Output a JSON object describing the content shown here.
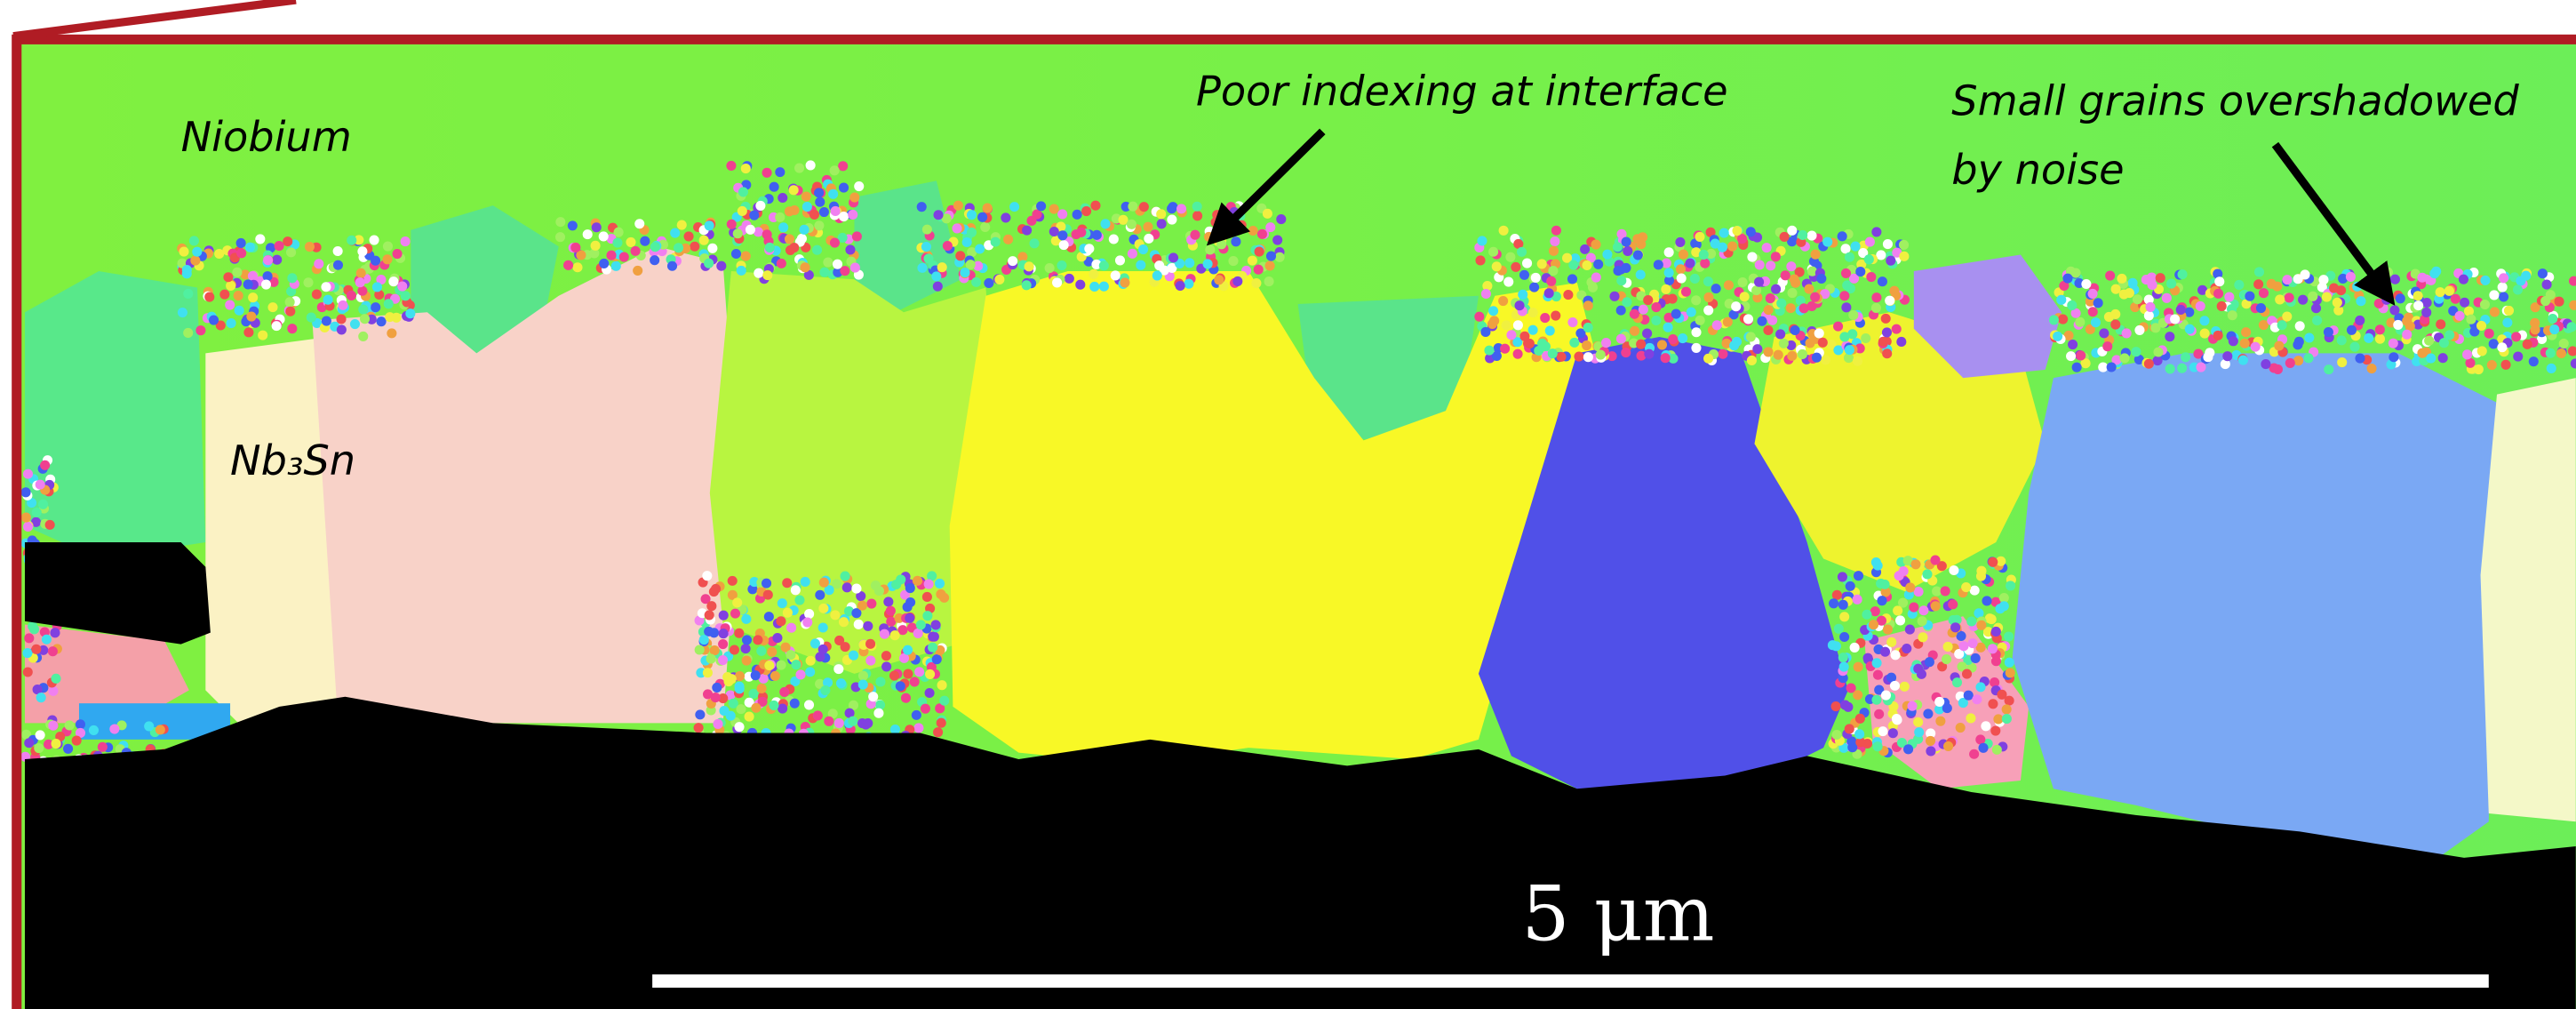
{
  "labels": {
    "material_top": "Niobium",
    "material_bottom": "Nb₃Sn",
    "annotation_1": "Poor indexing at interface",
    "annotation_2_line_1": "Small grains overshadowed",
    "annotation_2_line_2": "by noise",
    "scale_bar": "5 μm"
  }
}
